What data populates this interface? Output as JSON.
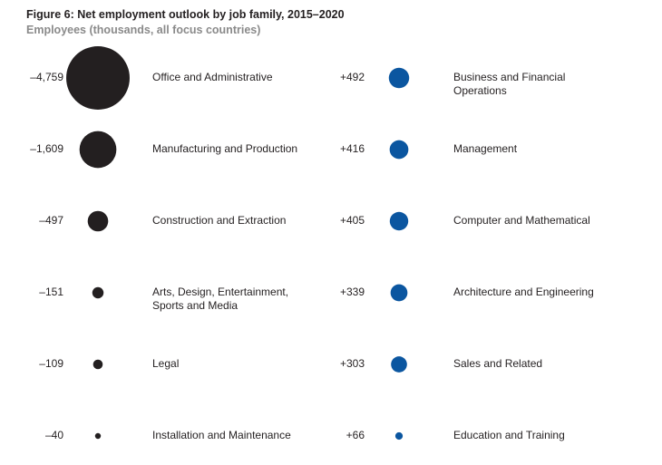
{
  "chart_data": {
    "type": "bubble",
    "title": "Figure 6: Net employment outlook by job family, 2015–2020",
    "subtitle": "Employees (thousands, all focus countries)",
    "series": [
      {
        "color": "#231f20",
        "categories": [
          "Office and Administrative",
          "Manufacturing and Production",
          "Construction and Extraction",
          "Arts, Design, Entertainment, Sports and Media",
          "Legal",
          "Installation and Maintenance"
        ],
        "values": [
          -4759,
          -1609,
          -497,
          -151,
          -109,
          -40
        ],
        "value_labels": [
          "–4,759",
          "–1,609",
          "–497",
          "–151",
          "–109",
          "–40"
        ]
      },
      {
        "color": "#0b56a0",
        "categories": [
          "Business and Financial Operations",
          "Management",
          "Computer and Mathematical",
          "Architecture and Engineering",
          "Sales and Related",
          "Education and Training"
        ],
        "values": [
          492,
          416,
          405,
          339,
          303,
          66
        ],
        "value_labels": [
          "+492",
          "+416",
          "+405",
          "+339",
          "+303",
          "+66"
        ]
      }
    ]
  }
}
